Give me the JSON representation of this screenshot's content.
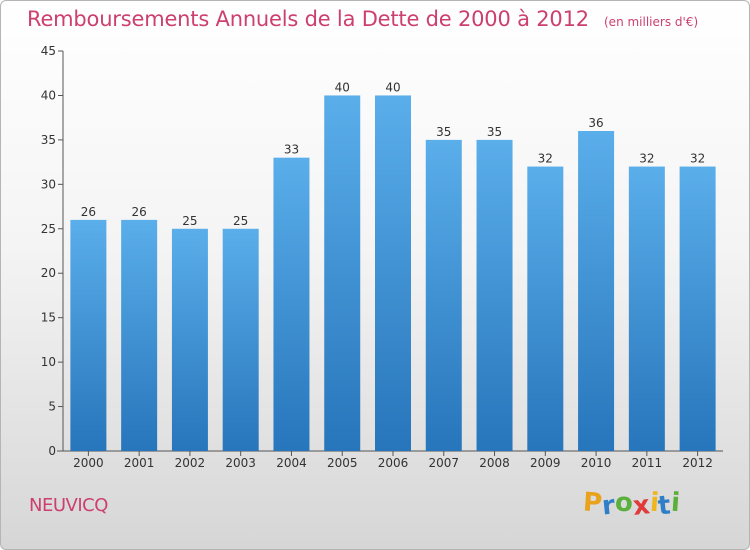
{
  "chart_data": {
    "type": "bar",
    "title": "Remboursements Annuels de la Dette de 2000 à 2012",
    "subtitle": "(en milliers d'€)",
    "categories": [
      "2000",
      "2001",
      "2002",
      "2003",
      "2004",
      "2005",
      "2006",
      "2007",
      "2008",
      "2009",
      "2010",
      "2011",
      "2012"
    ],
    "values": [
      26,
      26,
      25,
      25,
      33,
      40,
      40,
      35,
      35,
      32,
      36,
      32,
      32
    ],
    "ylim": [
      0,
      45
    ],
    "yticks": [
      "0",
      "5",
      "10",
      "15",
      "20",
      "25",
      "30",
      "35",
      "40",
      "45"
    ],
    "grid": false,
    "legend": "none",
    "bar_color": "#3a8ed6"
  },
  "commune": "NEUVICQ",
  "logo": {
    "letters": [
      "P",
      "r",
      "o",
      "x",
      "i",
      "t",
      "i"
    ],
    "colors": [
      "#e8a21c",
      "#2e7fc7",
      "#5bb03b",
      "#e03a3a",
      "#f0b51e",
      "#2e7fc7",
      "#5bb03b"
    ]
  }
}
